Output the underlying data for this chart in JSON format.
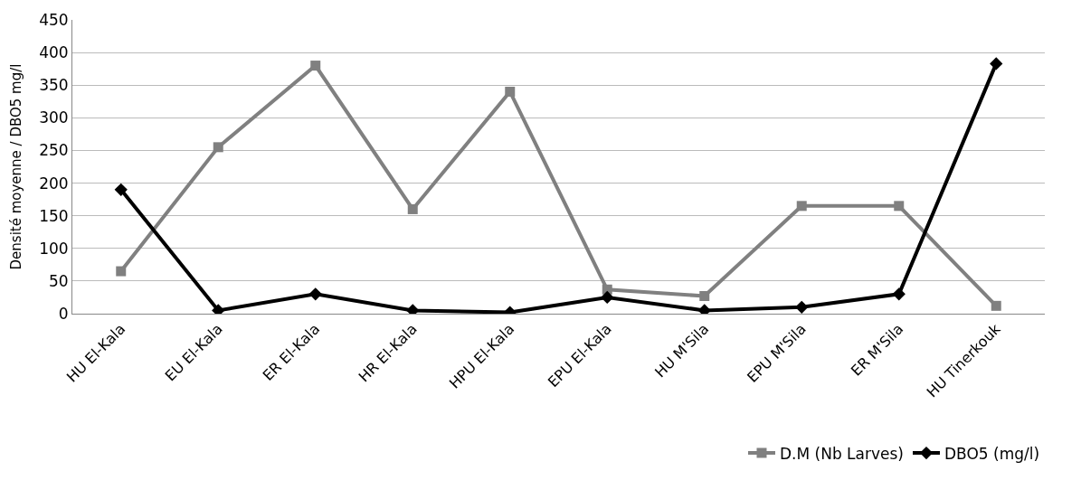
{
  "chart_data": {
    "type": "line",
    "ylabel": "Densité moyenne / DBO5 mg/l",
    "categories": [
      "HU El-Kala",
      "EU El-Kala",
      "ER El-Kala",
      "HR El-Kala",
      "HPU El-Kala",
      "EPU El-Kala",
      "HU M'Sila",
      "EPU M'Sila",
      "ER M'Sila",
      "HU Tinerkouk"
    ],
    "series": [
      {
        "name": "D.M (Nb Larves)",
        "color": "#808080",
        "marker": "square",
        "values": [
          65,
          255,
          380,
          160,
          340,
          37,
          27,
          165,
          165,
          12
        ]
      },
      {
        "name": "DBO5 (mg/l)",
        "color": "#000000",
        "marker": "diamond",
        "values": [
          190,
          5,
          30,
          5,
          2,
          25,
          5,
          10,
          30,
          383
        ]
      }
    ],
    "ylim": [
      0,
      450
    ],
    "yticks": [
      0,
      50,
      100,
      150,
      200,
      250,
      300,
      350,
      400,
      450
    ],
    "grid": "y",
    "legend": "bottom right",
    "line_style": "solid"
  }
}
